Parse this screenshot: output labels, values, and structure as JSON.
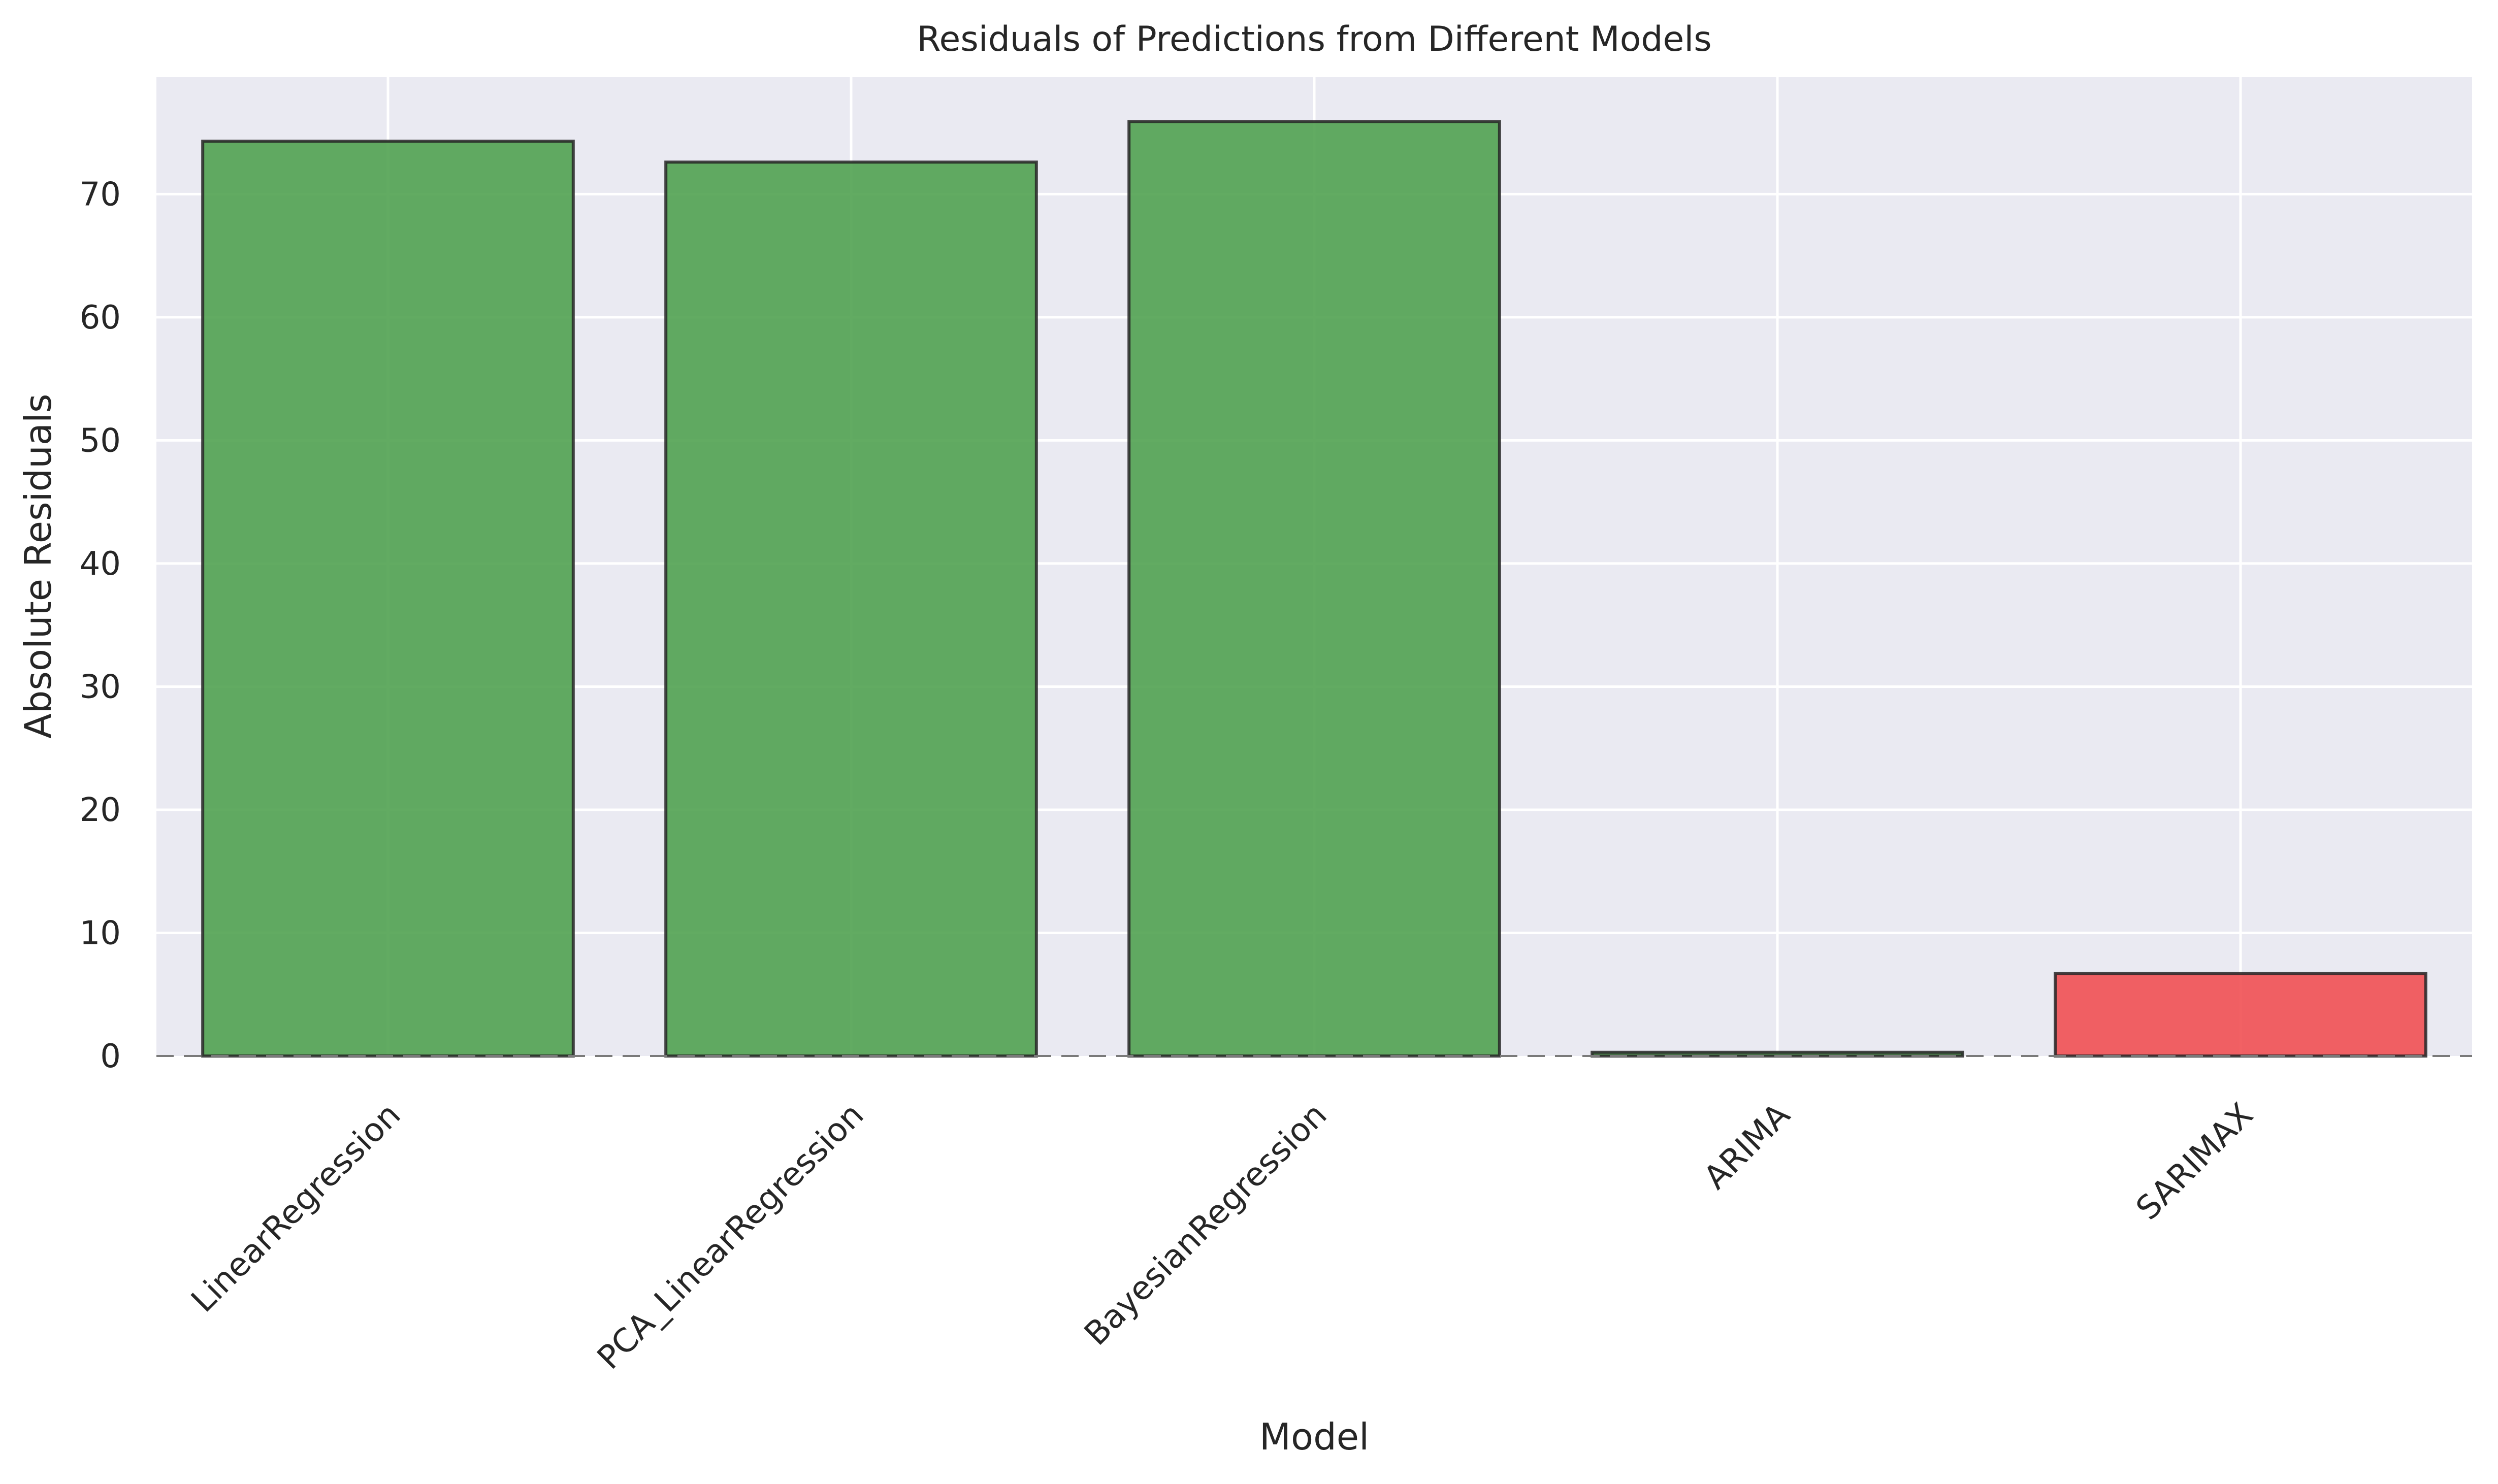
{
  "chart_data": {
    "type": "bar",
    "title": "Residuals of Predictions from Different Models",
    "xlabel": "Model",
    "ylabel": "Absolute Residuals",
    "categories": [
      "LinearRegression",
      "PCA_LinearRegression",
      "BayesianRegression",
      "ARIMA",
      "SARIMAX"
    ],
    "values": [
      74.3,
      72.6,
      75.9,
      0.3,
      6.7
    ],
    "bar_colors": [
      "#4c9f4c",
      "#4c9f4c",
      "#4c9f4c",
      "#4c9f4c",
      "#f04b4f"
    ],
    "ylim": [
      0,
      79.5
    ],
    "yticks": [
      0,
      10,
      20,
      30,
      40,
      50,
      60,
      70
    ],
    "grid": true,
    "zero_line": "dashed",
    "theme": {
      "plot_background": "#eaeaf2",
      "grid_color": "#ffffff",
      "bar_edge_color": "#262626",
      "zero_line_color": "#7a7a7a"
    }
  }
}
